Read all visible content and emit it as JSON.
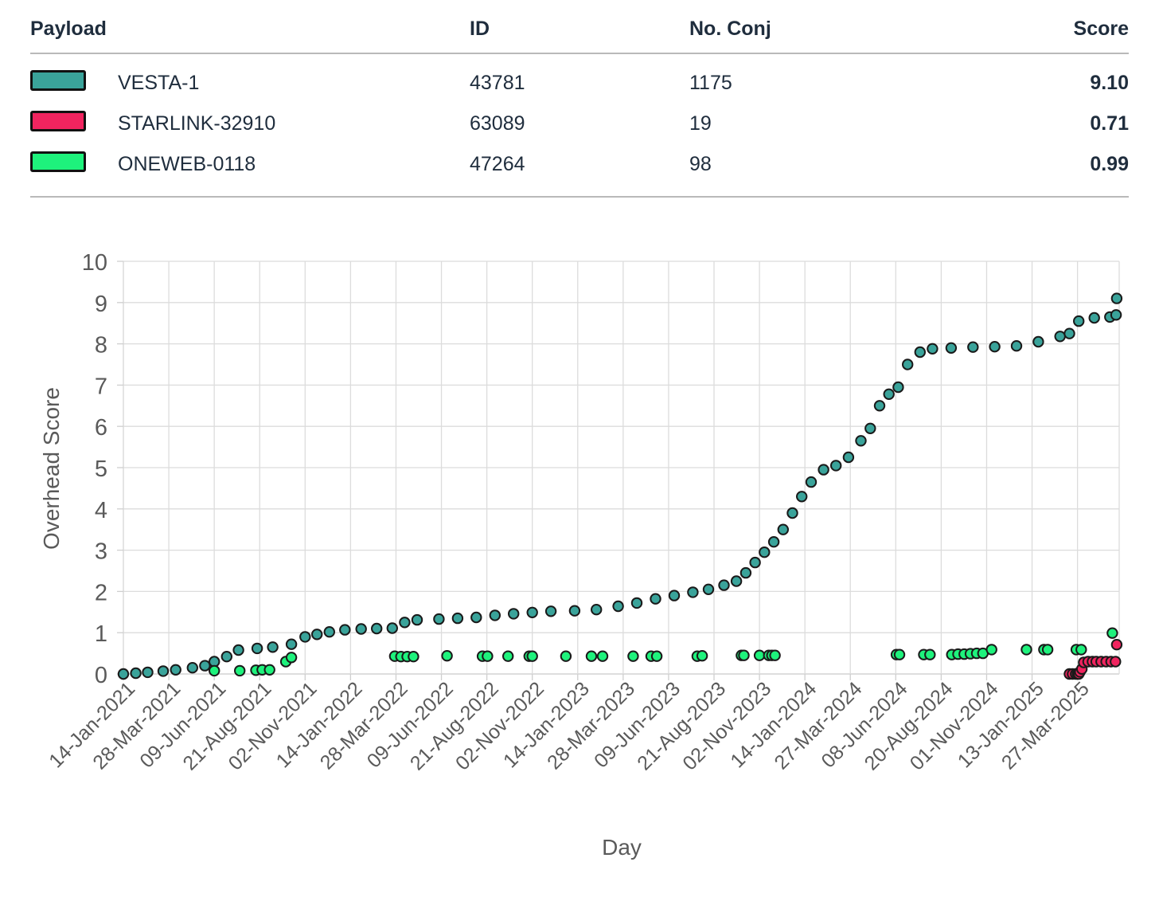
{
  "table": {
    "headers": {
      "payload": "Payload",
      "id": "ID",
      "conj": "No. Conj",
      "score": "Score"
    },
    "rows": [
      {
        "name": "VESTA-1",
        "id": "43781",
        "conj": "1175",
        "score": "9.10",
        "color": "#3aa39a"
      },
      {
        "name": "STARLINK-32910",
        "id": "63089",
        "conj": "19",
        "score": "0.71",
        "color": "#f0245f"
      },
      {
        "name": "ONEWEB-0118",
        "id": "47264",
        "conj": "98",
        "score": "0.99",
        "color": "#1ef27c"
      }
    ]
  },
  "chart_data": {
    "type": "scatter",
    "xlabel": "Day",
    "ylabel": "Overhead Score",
    "ylim": [
      0,
      10
    ],
    "xlim": [
      "2021-01-14",
      "2025-06-02"
    ],
    "grid": true,
    "x_tick_labels": [
      "14-Jan-2021",
      "28-Mar-2021",
      "09-Jun-2021",
      "21-Aug-2021",
      "02-Nov-2021",
      "14-Jan-2022",
      "28-Mar-2022",
      "09-Jun-2022",
      "21-Aug-2022",
      "02-Nov-2022",
      "14-Jan-2023",
      "28-Mar-2023",
      "09-Jun-2023",
      "21-Aug-2023",
      "02-Nov-2023",
      "14-Jan-2024",
      "27-Mar-2024",
      "08-Jun-2024",
      "20-Aug-2024",
      "01-Nov-2024",
      "13-Jan-2025",
      "27-Mar-2025"
    ],
    "y_ticks": [
      0,
      1,
      2,
      3,
      4,
      5,
      6,
      7,
      8,
      9,
      10
    ],
    "series": [
      {
        "name": "VESTA-1",
        "color": "#3aa39a",
        "x": [
          "2021-01-14",
          "2021-02-03",
          "2021-02-22",
          "2021-03-19",
          "2021-04-08",
          "2021-05-05",
          "2021-05-25",
          "2021-06-09",
          "2021-06-29",
          "2021-07-18",
          "2021-08-17",
          "2021-09-11",
          "2021-10-11",
          "2021-11-02",
          "2021-11-21",
          "2021-12-11",
          "2022-01-05",
          "2022-01-31",
          "2022-02-25",
          "2022-03-22",
          "2022-04-11",
          "2022-05-01",
          "2022-06-05",
          "2022-07-05",
          "2022-08-04",
          "2022-09-03",
          "2022-10-03",
          "2022-11-02",
          "2022-12-02",
          "2023-01-09",
          "2023-02-13",
          "2023-03-20",
          "2023-04-19",
          "2023-05-19",
          "2023-06-18",
          "2023-07-18",
          "2023-08-12",
          "2023-09-06",
          "2023-09-26",
          "2023-10-11",
          "2023-10-26",
          "2023-11-10",
          "2023-11-25",
          "2023-12-10",
          "2023-12-25",
          "2024-01-09",
          "2024-01-24",
          "2024-02-13",
          "2024-03-04",
          "2024-03-24",
          "2024-04-13",
          "2024-04-28",
          "2024-05-13",
          "2024-05-28",
          "2024-06-12",
          "2024-06-27",
          "2024-07-17",
          "2024-08-06",
          "2024-09-05",
          "2024-10-10",
          "2024-11-14",
          "2024-12-19",
          "2025-01-23",
          "2025-02-27",
          "2025-03-14",
          "2025-03-29",
          "2025-04-23",
          "2025-05-18",
          "2025-05-28",
          "2025-05-29"
        ],
        "y": [
          0.0,
          0.02,
          0.04,
          0.07,
          0.1,
          0.15,
          0.2,
          0.3,
          0.42,
          0.58,
          0.62,
          0.65,
          0.72,
          0.9,
          0.96,
          1.02,
          1.07,
          1.09,
          1.1,
          1.11,
          1.25,
          1.31,
          1.33,
          1.35,
          1.37,
          1.42,
          1.46,
          1.49,
          1.52,
          1.53,
          1.56,
          1.64,
          1.72,
          1.82,
          1.9,
          1.98,
          2.05,
          2.15,
          2.25,
          2.45,
          2.7,
          2.95,
          3.2,
          3.5,
          3.9,
          4.3,
          4.65,
          4.95,
          5.05,
          5.25,
          5.65,
          5.95,
          6.5,
          6.78,
          6.95,
          7.5,
          7.8,
          7.88,
          7.9,
          7.92,
          7.93,
          7.95,
          8.05,
          8.18,
          8.25,
          8.55,
          8.63,
          8.65,
          8.7,
          9.1
        ]
      },
      {
        "name": "STARLINK-32910",
        "color": "#f0245f",
        "x": [
          "2025-03-14",
          "2025-03-19",
          "2025-03-24",
          "2025-03-27",
          "2025-03-29",
          "2025-03-31",
          "2025-04-03",
          "2025-04-06",
          "2025-04-13",
          "2025-04-20",
          "2025-04-26",
          "2025-05-04",
          "2025-05-12",
          "2025-05-20",
          "2025-05-27",
          "2025-05-29"
        ],
        "y": [
          0.0,
          0.0,
          0.0,
          0.0,
          0.0,
          0.05,
          0.12,
          0.28,
          0.3,
          0.3,
          0.3,
          0.3,
          0.3,
          0.3,
          0.3,
          0.71
        ]
      },
      {
        "name": "ONEWEB-0118",
        "color": "#1ef27c",
        "x": [
          "2021-06-09",
          "2021-07-20",
          "2021-08-15",
          "2021-08-25",
          "2021-09-06",
          "2021-10-02",
          "2021-10-11",
          "2022-03-26",
          "2022-04-05",
          "2022-04-15",
          "2022-04-25",
          "2022-06-18",
          "2022-08-14",
          "2022-08-22",
          "2022-09-24",
          "2022-10-28",
          "2022-11-02",
          "2022-12-26",
          "2023-02-05",
          "2023-02-23",
          "2023-04-13",
          "2023-05-12",
          "2023-05-21",
          "2023-07-25",
          "2023-08-02",
          "2023-10-04",
          "2023-10-08",
          "2023-11-02",
          "2023-11-17",
          "2023-11-22",
          "2023-11-27",
          "2024-06-09",
          "2024-06-14",
          "2024-07-23",
          "2024-08-02",
          "2024-09-06",
          "2024-09-16",
          "2024-09-26",
          "2024-10-06",
          "2024-10-16",
          "2024-10-26",
          "2024-11-09",
          "2025-01-04",
          "2025-02-01",
          "2025-02-07",
          "2025-03-25",
          "2025-04-02",
          "2025-05-22"
        ],
        "y": [
          0.08,
          0.08,
          0.09,
          0.1,
          0.1,
          0.3,
          0.4,
          0.43,
          0.42,
          0.42,
          0.42,
          0.44,
          0.43,
          0.43,
          0.43,
          0.43,
          0.43,
          0.43,
          0.43,
          0.43,
          0.43,
          0.43,
          0.43,
          0.43,
          0.44,
          0.45,
          0.45,
          0.45,
          0.45,
          0.45,
          0.45,
          0.47,
          0.47,
          0.47,
          0.47,
          0.47,
          0.48,
          0.48,
          0.49,
          0.5,
          0.5,
          0.59,
          0.59,
          0.59,
          0.59,
          0.59,
          0.59,
          0.99
        ]
      }
    ]
  }
}
